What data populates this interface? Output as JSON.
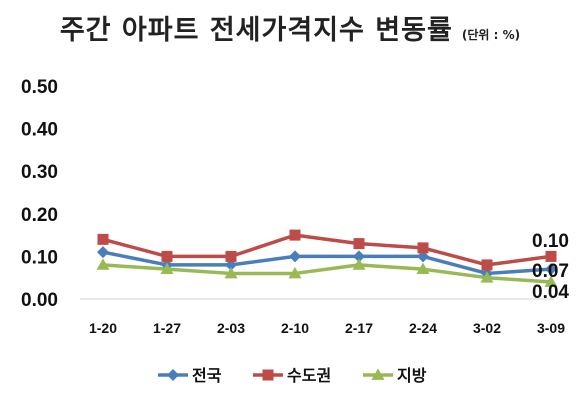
{
  "chart_data": {
    "type": "line",
    "title": "주간 아파트 전세가격지수 변동률",
    "unit": "(단위 : %)",
    "categories": [
      "1-20",
      "1-27",
      "2-03",
      "2-10",
      "2-17",
      "2-24",
      "3-02",
      "3-09"
    ],
    "y_ticks": [
      "0.00",
      "0.10",
      "0.20",
      "0.30",
      "0.40",
      "0.50"
    ],
    "ylim": [
      0,
      0.5
    ],
    "grid": false,
    "legend": "bottom",
    "series": [
      {
        "name": "전국",
        "color": "#4a7ebb",
        "marker": "diamond",
        "values": [
          0.11,
          0.08,
          0.08,
          0.1,
          0.1,
          0.1,
          0.06,
          0.07
        ]
      },
      {
        "name": "수도권",
        "color": "#be4b48",
        "marker": "square",
        "values": [
          0.14,
          0.1,
          0.1,
          0.15,
          0.13,
          0.12,
          0.08,
          0.1
        ]
      },
      {
        "name": "지방",
        "color": "#98b954",
        "marker": "triangle",
        "values": [
          0.08,
          0.07,
          0.06,
          0.06,
          0.08,
          0.07,
          0.05,
          0.04
        ]
      }
    ],
    "end_labels": [
      "0.10",
      "0.07",
      "0.04"
    ]
  }
}
